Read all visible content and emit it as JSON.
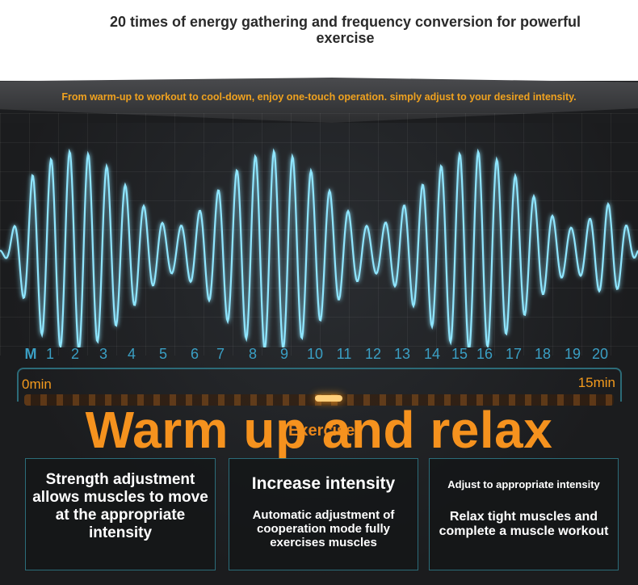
{
  "header": {
    "headline": "20 times of energy gathering and frequency conversion for powerful exercise",
    "tagline": "From warm-up to workout to cool-down, enjoy one-touch operation. simply adjust to your desired intensity."
  },
  "scale": {
    "mode_label": "M",
    "levels": [
      "1",
      "2",
      "3",
      "4",
      "5",
      "6",
      "7",
      "8",
      "9",
      "10",
      "11",
      "12",
      "13",
      "14",
      "15",
      "16",
      "17",
      "18",
      "19",
      "20"
    ]
  },
  "timeline": {
    "start": "0min",
    "end": "15min",
    "phase_label": "Exercise",
    "overlay_title": "Warm up and relax"
  },
  "cards": [
    {
      "title": "",
      "body": "Strength adjustment allows muscles to move at the appropriate intensity"
    },
    {
      "title": "Increase intensity",
      "body": "Automatic adjustment of cooperation mode fully exercises muscles"
    },
    {
      "title": "Adjust to appropriate intensity",
      "body": "Relax tight muscles and complete a muscle workout"
    }
  ],
  "colors": {
    "accent_orange": "#f5921e",
    "wave_cyan": "#8fe6ff",
    "scale_blue": "#3a9fc4",
    "border_teal": "#2c6b78"
  }
}
